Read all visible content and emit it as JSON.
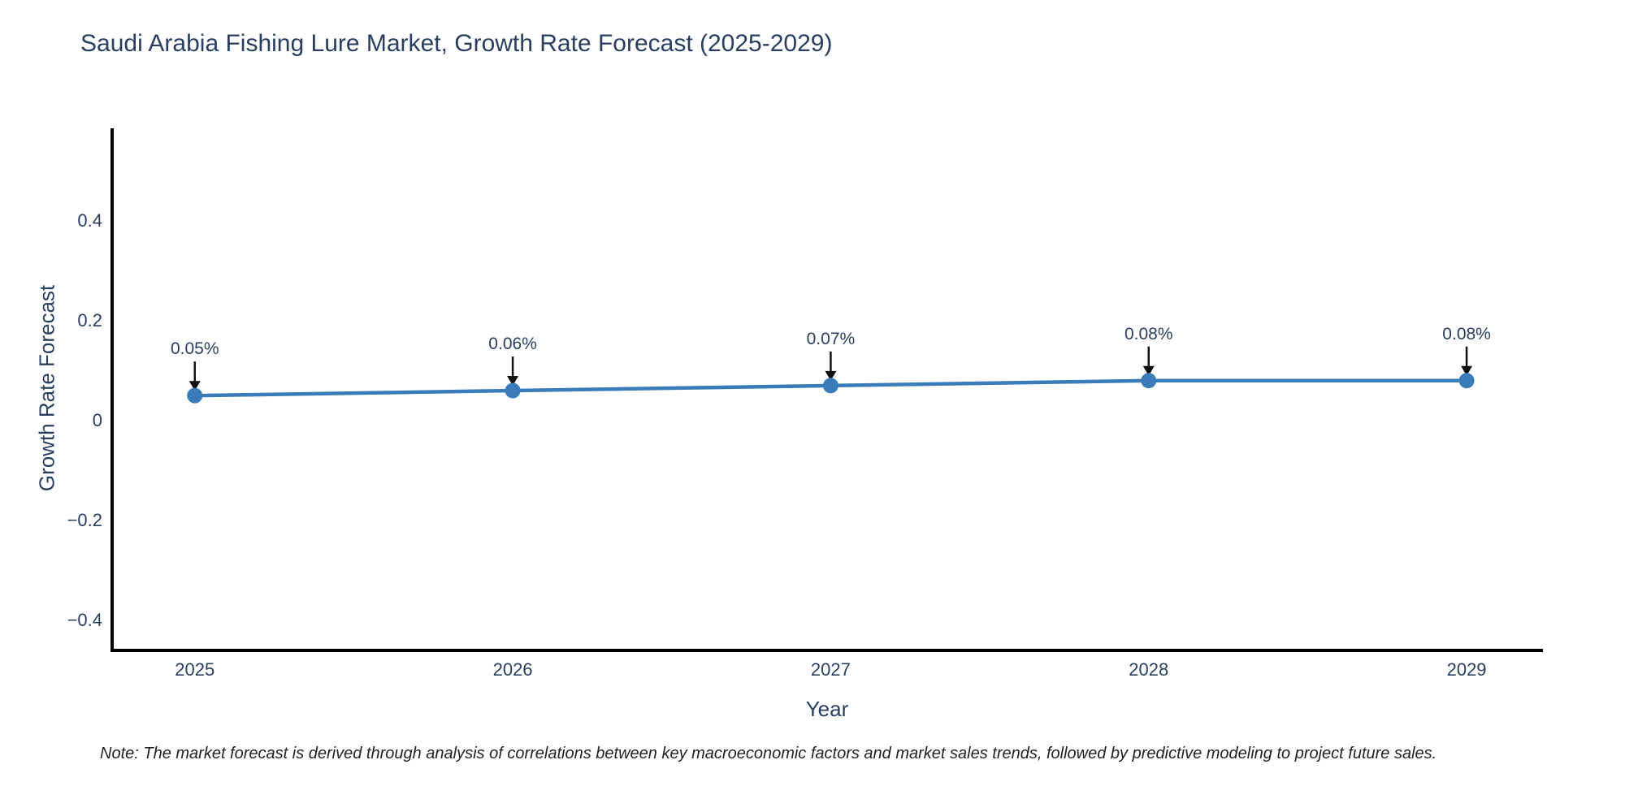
{
  "chart": {
    "note": "Note: The market forecast is derived through analysis of correlations between key macroeconomic factors and market sales trends, followed by predictive modeling to project future sales."
  },
  "chart_data": {
    "type": "line",
    "title": "Saudi Arabia Fishing Lure Market, Growth Rate Forecast (2025-2029)",
    "xlabel": "Year",
    "ylabel": "Growth Rate Forecast",
    "x": [
      2025,
      2026,
      2027,
      2028,
      2029
    ],
    "values": [
      0.05,
      0.06,
      0.07,
      0.08,
      0.08
    ],
    "point_labels": [
      "0.05%",
      "0.06%",
      "0.07%",
      "0.08%",
      "0.08%"
    ],
    "x_tick_labels": [
      "2025",
      "2026",
      "2027",
      "2028",
      "2029"
    ],
    "y_ticks": [
      {
        "value": 0.4,
        "label": "0.4"
      },
      {
        "value": 0.2,
        "label": "0.2"
      },
      {
        "value": 0,
        "label": "0"
      },
      {
        "value": -0.2,
        "label": "−0.2"
      },
      {
        "value": -0.4,
        "label": "−0.4"
      }
    ],
    "xlim": [
      2024.74,
      2029.24
    ],
    "ylim": [
      -0.46,
      0.585
    ],
    "grid": false,
    "legend_position": "none",
    "series_name": "Growth Rate Forecast",
    "colors": {
      "line": "#3a7cba",
      "marker": "#3a7cba",
      "axis_line": "#000000",
      "annotation_arrow": "#111111",
      "text": "#2a3f5f"
    }
  }
}
